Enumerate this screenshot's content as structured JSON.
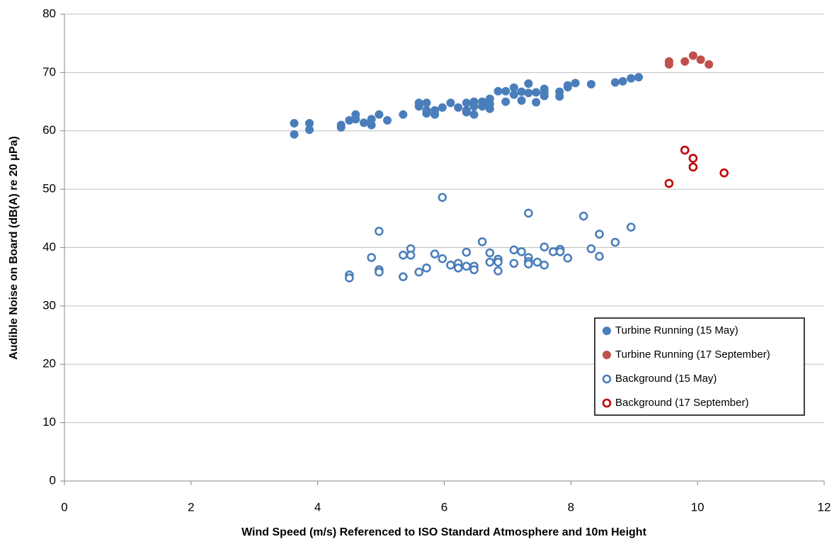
{
  "chart_data": {
    "type": "scatter",
    "xlabel": "Wind  Speed (m/s)  Referenced to  ISO Standard Atmosphere and 10m Height",
    "ylabel": "Audible Noise on Board (dB(A) re 20 μPa)",
    "xlim": [
      0,
      12
    ],
    "xticks": [
      0,
      2,
      4,
      6,
      8,
      10,
      12
    ],
    "ylim": [
      0,
      80
    ],
    "yticks": [
      0,
      10,
      20,
      30,
      40,
      50,
      60,
      70,
      80
    ],
    "grid": true,
    "series": [
      {
        "name": "Turbine Running (15 May)",
        "color": "#4a7ebb",
        "marker": "filled",
        "x": [
          3.63,
          3.63,
          3.87,
          3.87,
          4.37,
          4.37,
          4.5,
          4.6,
          4.6,
          4.73,
          4.85,
          4.85,
          4.97,
          5.1,
          5.35,
          5.6,
          5.6,
          5.72,
          5.72,
          5.72,
          5.85,
          5.85,
          5.97,
          6.1,
          6.22,
          6.35,
          6.35,
          6.35,
          6.47,
          6.47,
          6.47,
          6.6,
          6.6,
          6.72,
          6.72,
          6.72,
          6.85,
          6.97,
          6.97,
          7.1,
          7.1,
          7.22,
          7.22,
          7.33,
          7.33,
          7.45,
          7.45,
          7.58,
          7.58,
          7.58,
          7.82,
          7.82,
          7.95,
          7.95,
          8.07,
          8.32,
          8.7,
          8.82,
          8.95,
          9.07
        ],
        "values": [
          61.3,
          59.4,
          61.3,
          60.2,
          61.0,
          60.6,
          61.8,
          62.8,
          62.0,
          61.4,
          62.0,
          61.0,
          62.8,
          61.8,
          62.8,
          64.8,
          64.2,
          64.8,
          63.5,
          63.0,
          63.5,
          62.8,
          64.0,
          64.8,
          64.0,
          64.8,
          63.5,
          63.2,
          65.0,
          64.2,
          62.8,
          65.0,
          64.2,
          65.5,
          64.6,
          63.8,
          66.8,
          66.8,
          65.0,
          67.4,
          66.2,
          66.7,
          65.2,
          68.1,
          66.5,
          66.6,
          64.9,
          67.2,
          66.6,
          66.0,
          66.7,
          65.9,
          67.5,
          67.8,
          68.2,
          68.0,
          68.3,
          68.5,
          69.0,
          69.2
        ]
      },
      {
        "name": "Turbine Running (17 September)",
        "color": "#c0504d",
        "marker": "filled",
        "x": [
          9.55,
          9.55,
          9.8,
          9.93,
          10.05,
          10.18
        ],
        "values": [
          71.9,
          71.4,
          71.9,
          72.9,
          72.2,
          71.4
        ]
      },
      {
        "name": "Background (15 May)",
        "color": "#4a7ebb",
        "marker": "open",
        "x": [
          4.5,
          4.5,
          4.85,
          4.97,
          4.97,
          4.97,
          5.35,
          5.35,
          5.47,
          5.47,
          5.6,
          5.72,
          5.85,
          5.97,
          5.97,
          6.1,
          6.22,
          6.22,
          6.35,
          6.35,
          6.47,
          6.47,
          6.6,
          6.72,
          6.72,
          6.85,
          6.85,
          6.85,
          7.1,
          7.1,
          7.22,
          7.33,
          7.33,
          7.33,
          7.33,
          7.47,
          7.58,
          7.58,
          7.72,
          7.83,
          7.83,
          7.95,
          8.2,
          8.32,
          8.45,
          8.45,
          8.7,
          8.95
        ],
        "values": [
          35.3,
          34.8,
          38.3,
          42.8,
          36.2,
          35.8,
          38.7,
          35.0,
          39.8,
          38.7,
          35.8,
          36.5,
          38.9,
          48.6,
          38.1,
          37.0,
          37.3,
          36.5,
          39.2,
          36.8,
          36.8,
          36.2,
          41.0,
          39.1,
          37.5,
          38.0,
          37.5,
          36.0,
          39.6,
          37.3,
          39.3,
          45.9,
          38.3,
          37.6,
          37.2,
          37.5,
          40.1,
          37.0,
          39.3,
          39.7,
          39.3,
          38.2,
          45.4,
          39.8,
          42.3,
          38.5,
          40.9,
          43.5
        ]
      },
      {
        "name": "Background (17 September)",
        "color": "#c00000",
        "marker": "open",
        "x": [
          9.55,
          9.8,
          9.93,
          9.93,
          10.42
        ],
        "values": [
          51.0,
          56.7,
          55.3,
          53.8,
          52.8
        ]
      }
    ]
  }
}
